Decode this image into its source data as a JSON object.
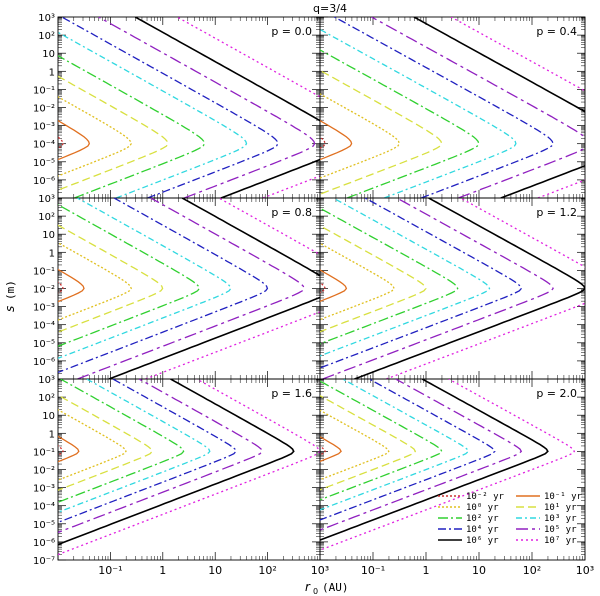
{
  "figure_title": "q=3/4",
  "x_axis_label_main": "r",
  "x_axis_label_sub": "0",
  "x_axis_label_unit": "(AU)",
  "y_axis_label_main": "s",
  "y_axis_label_unit": "(m)",
  "chart_data": {
    "type": "line",
    "title": "q=3/4",
    "xlabel": "r0 (AU)",
    "ylabel": "s (m)",
    "xscale": "log",
    "yscale": "log",
    "xlim": [
      0.01,
      1000
    ],
    "ylim_top_panels": [
      1e-07,
      1000
    ],
    "ylim_bottom_panels": [
      1e-07,
      1000
    ],
    "x_tick_labels": [
      "10⁻¹",
      "1",
      "10",
      "10²",
      "10³"
    ],
    "y_tick_labels": [
      "10⁻⁷",
      "10⁻⁶",
      "10⁻⁵",
      "10⁻⁴",
      "10⁻³",
      "10⁻²",
      "10⁻¹",
      "1",
      "10",
      "10²",
      "10³"
    ],
    "legend_position": "bottom-right",
    "legend": [
      {
        "label": "10⁻² yr",
        "color": "#cc3333",
        "dash": "2,2"
      },
      {
        "label": "10⁻¹ yr",
        "color": "#e07020",
        "dash": ""
      },
      {
        "label": "10⁰ yr",
        "color": "#e0c020",
        "dash": "2,2"
      },
      {
        "label": "10¹ yr",
        "color": "#d8e040",
        "dash": "8,4"
      },
      {
        "label": "10² yr",
        "color": "#30d030",
        "dash": "10,3,2,3"
      },
      {
        "label": "10³ yr",
        "color": "#30d8e0",
        "dash": "6,3,2,3"
      },
      {
        "label": "10⁴ yr",
        "color": "#2020c0",
        "dash": "8,3,2,3"
      },
      {
        "label": "10⁵ yr",
        "color": "#9020c0",
        "dash": "12,4,3,4"
      },
      {
        "label": "10⁶ yr",
        "color": "#000000",
        "dash": ""
      },
      {
        "label": "10⁷ yr",
        "color": "#e020e0",
        "dash": "2,3"
      }
    ],
    "panels": [
      {
        "label": "p = 0.0",
        "peak_s_exp": -4.0,
        "peak_r0_log": [
          -1.9,
          -1.4,
          -0.6,
          0.1,
          0.8,
          1.6,
          2.2,
          2.9,
          3.6,
          4.4
        ],
        "spread": 1.0
      },
      {
        "label": "p = 0.4",
        "peak_s_exp": -4.0,
        "peak_r0_log": [
          -1.9,
          -1.4,
          -0.5,
          0.3,
          1.0,
          1.7,
          2.4,
          3.1,
          3.9,
          4.6
        ],
        "spread": 1.0
      },
      {
        "label": "p = 0.8",
        "peak_s_exp": -2.0,
        "peak_r0_log": [
          -1.9,
          -1.5,
          -0.6,
          0.0,
          0.7,
          1.3,
          2.0,
          2.7,
          3.3,
          4.0
        ],
        "spread": 0.8
      },
      {
        "label": "p = 1.2",
        "peak_s_exp": -2.0,
        "peak_r0_log": [
          -1.9,
          -1.5,
          -0.6,
          0.0,
          0.6,
          1.2,
          1.8,
          2.4,
          3.0,
          3.6
        ],
        "spread": 0.7
      },
      {
        "label": "p = 1.6",
        "peak_s_exp": -1.0,
        "peak_r0_log": [
          -1.9,
          -1.6,
          -0.7,
          -0.2,
          0.4,
          0.9,
          1.4,
          1.9,
          2.5,
          3.0
        ],
        "spread": 0.6
      },
      {
        "label": "p = 2.0",
        "peak_s_exp": -1.0,
        "peak_r0_log": [
          -1.9,
          -1.6,
          -0.7,
          -0.2,
          0.3,
          0.8,
          1.3,
          1.8,
          2.3,
          2.8
        ],
        "spread": 0.5
      }
    ]
  }
}
